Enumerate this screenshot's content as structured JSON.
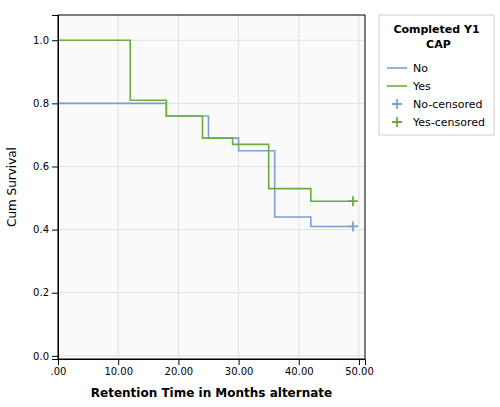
{
  "chart_data": {
    "type": "line",
    "xlabel": "Retention Time in Months alternate",
    "ylabel": "Cum Survival",
    "legend_title": "Completed Y1\n     CAP",
    "xlim": [
      0,
      51
    ],
    "ylim": [
      -0.01,
      1.08
    ],
    "xticks": [
      {
        "value": 0,
        "label": ".00"
      },
      {
        "value": 10,
        "label": "10.00"
      },
      {
        "value": 20,
        "label": "20.00"
      },
      {
        "value": 30,
        "label": "30.00"
      },
      {
        "value": 40,
        "label": "40.00"
      },
      {
        "value": 50,
        "label": "50.00"
      }
    ],
    "yticks": [
      {
        "value": 0.0,
        "label": "0.0"
      },
      0.2,
      0.4,
      0.6,
      0.8,
      {
        "value": 1.0,
        "label": "1.0"
      }
    ],
    "grid": true,
    "legend": "right",
    "series": [
      {
        "name": "No",
        "type": "line",
        "color": "#7B9FD4",
        "x": [
          0,
          12,
          12,
          18,
          18,
          25,
          25,
          30,
          30,
          36,
          36,
          42,
          42,
          49
        ],
        "values": [
          0.8,
          0.8,
          0.8,
          0.8,
          0.76,
          0.76,
          0.69,
          0.69,
          0.65,
          0.65,
          0.44,
          0.44,
          0.41,
          0.41
        ]
      },
      {
        "name": "Yes",
        "type": "line",
        "color": "#6AAD3D",
        "x": [
          0,
          12,
          12,
          18,
          18,
          24,
          24,
          29,
          29,
          35,
          35,
          42,
          42,
          49
        ],
        "values": [
          1.0,
          1.0,
          0.81,
          0.81,
          0.76,
          0.76,
          0.69,
          0.69,
          0.67,
          0.67,
          0.53,
          0.53,
          0.49,
          0.49
        ]
      },
      {
        "name": "No-censored",
        "type": "scatter",
        "marker": "plus",
        "color": "#7B9FD4",
        "x": [
          49
        ],
        "values": [
          0.41
        ]
      },
      {
        "name": "Yes-censored",
        "type": "scatter",
        "marker": "plus",
        "color": "#6AAD3D",
        "x": [
          49
        ],
        "values": [
          0.49
        ]
      }
    ]
  }
}
